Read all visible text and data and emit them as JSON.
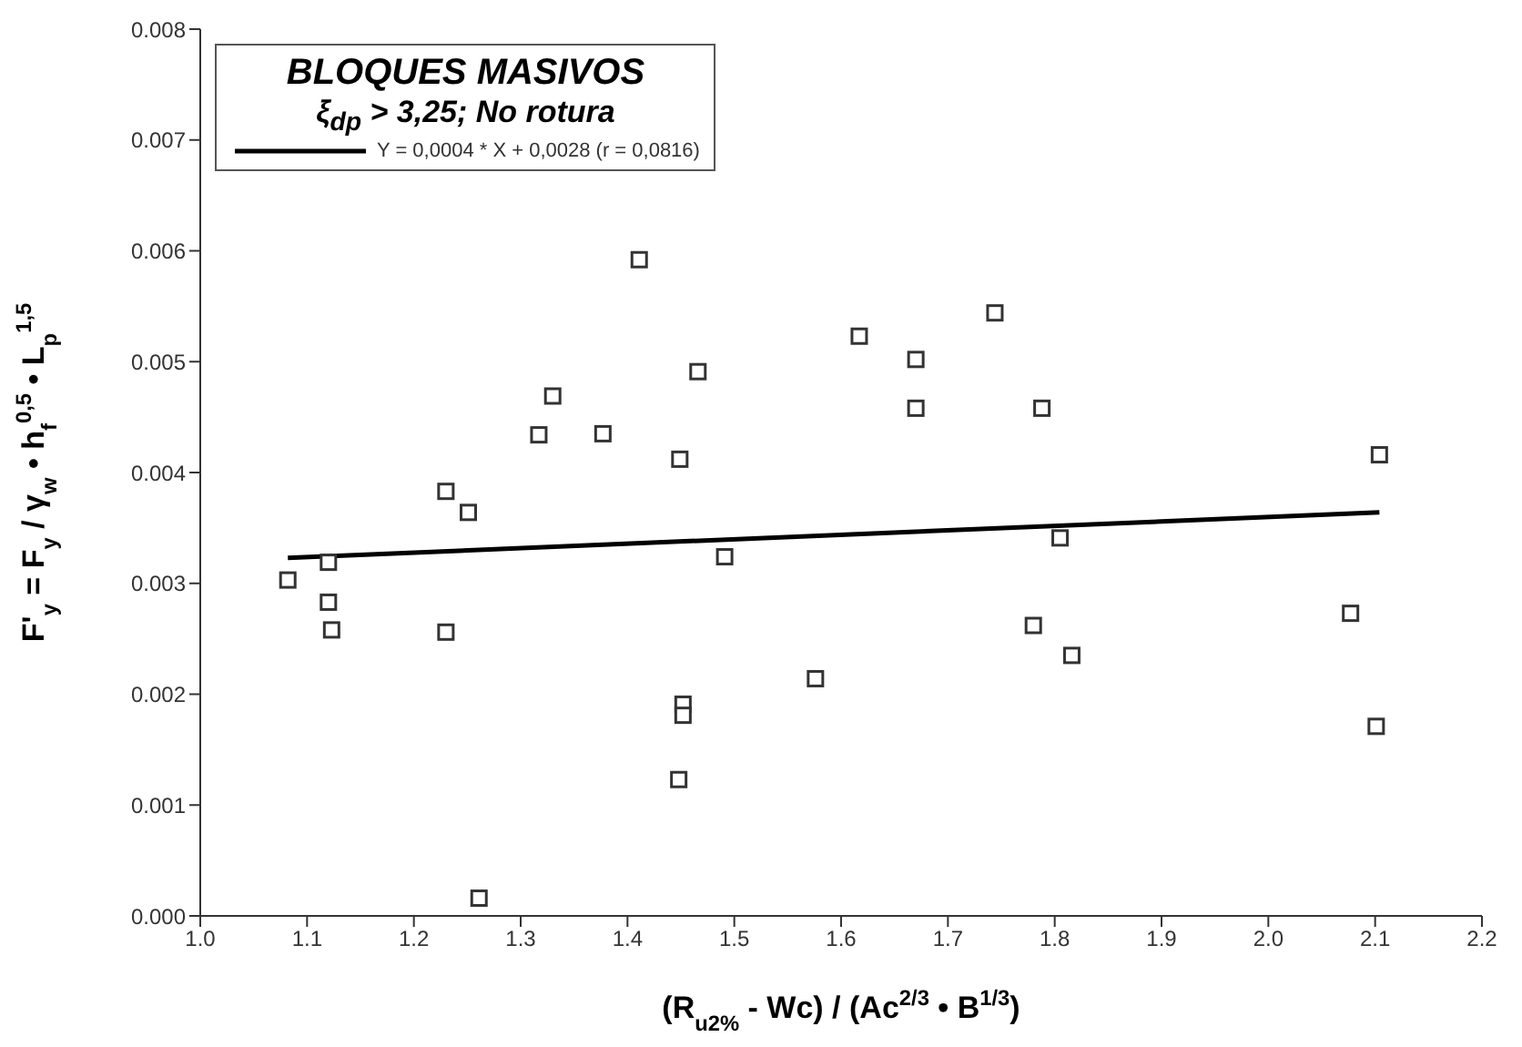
{
  "chart_data": {
    "type": "scatter",
    "title": "BLOQUES MASIVOS",
    "subtitle": "ξ$_{dp}$ > 3,25; No rotura",
    "xlabel": "(R$_{u2%}$ - Wc) / (Ac$^{2/3}$ • B$^{1/3}$)",
    "ylabel": "F'$_{y}$ = F$_{y}$ / γ$_{w}$ • h$_{f}$$^{0,5}$ • L$_{p}$$^{1,5}$",
    "xlim": [
      1.0,
      2.2
    ],
    "xticks": [
      {
        "value": 1.0,
        "label": "1.0"
      },
      {
        "value": 1.1,
        "label": "1.1"
      },
      {
        "value": 1.2,
        "label": "1.2"
      },
      {
        "value": 1.3,
        "label": "1.3"
      },
      {
        "value": 1.4,
        "label": "1.4"
      },
      {
        "value": 1.5,
        "label": "1.5"
      },
      {
        "value": 1.6,
        "label": "1.6"
      },
      {
        "value": 1.7,
        "label": "1.7"
      },
      {
        "value": 1.8,
        "label": "1.8"
      },
      {
        "value": 1.9,
        "label": "1.9"
      },
      {
        "value": 2.0,
        "label": "2.0"
      },
      {
        "value": 2.1,
        "label": "2.1"
      },
      {
        "value": 2.2,
        "label": "2.2"
      }
    ],
    "ylim": [
      0,
      0.008
    ],
    "yticks": [
      {
        "value": 0,
        "label": "0.000"
      },
      {
        "value": 0.001,
        "label": "0.001"
      },
      {
        "value": 0.002,
        "label": "0.002"
      },
      {
        "value": 0.003,
        "label": "0.003"
      },
      {
        "value": 0.004,
        "label": "0.004"
      },
      {
        "value": 0.005,
        "label": "0.005"
      },
      {
        "value": 0.006,
        "label": "0.006"
      },
      {
        "value": 0.007,
        "label": "0.007"
      },
      {
        "value": 0.008,
        "label": "0.008"
      }
    ],
    "grid": false,
    "legend": "top left",
    "series": [
      {
        "type": "scatter",
        "color": "#333333",
        "marker": "square",
        "x": [
          1.082,
          1.12,
          1.12,
          1.123,
          1.23,
          1.23,
          1.251,
          1.261,
          1.317,
          1.33,
          1.377,
          1.411,
          1.449,
          1.466,
          1.491,
          1.452,
          1.452,
          1.448,
          1.576,
          1.617,
          1.67,
          1.67,
          1.744,
          1.788,
          2.104,
          1.805,
          1.78,
          1.816,
          2.077,
          2.101
        ],
        "values": [
          0.00303,
          0.00319,
          0.00283,
          0.00258,
          0.00383,
          0.00256,
          0.00364,
          0.00016,
          0.00434,
          0.00469,
          0.00435,
          0.00592,
          0.00412,
          0.00491,
          0.00324,
          0.00191,
          0.00181,
          0.00123,
          0.00214,
          0.00523,
          0.00502,
          0.00458,
          0.00544,
          0.00458,
          0.00416,
          0.00341,
          0.00262,
          0.00235,
          0.00273,
          0.00171
        ]
      },
      {
        "type": "line",
        "name": "Y = 0,0004 * X + 0,0028 (r = 0,0816)",
        "color": "#000000",
        "marker": "none",
        "line_style": "solid",
        "x": [
          1.082,
          2.104
        ],
        "values": [
          0.00323,
          0.00364
        ]
      }
    ]
  }
}
